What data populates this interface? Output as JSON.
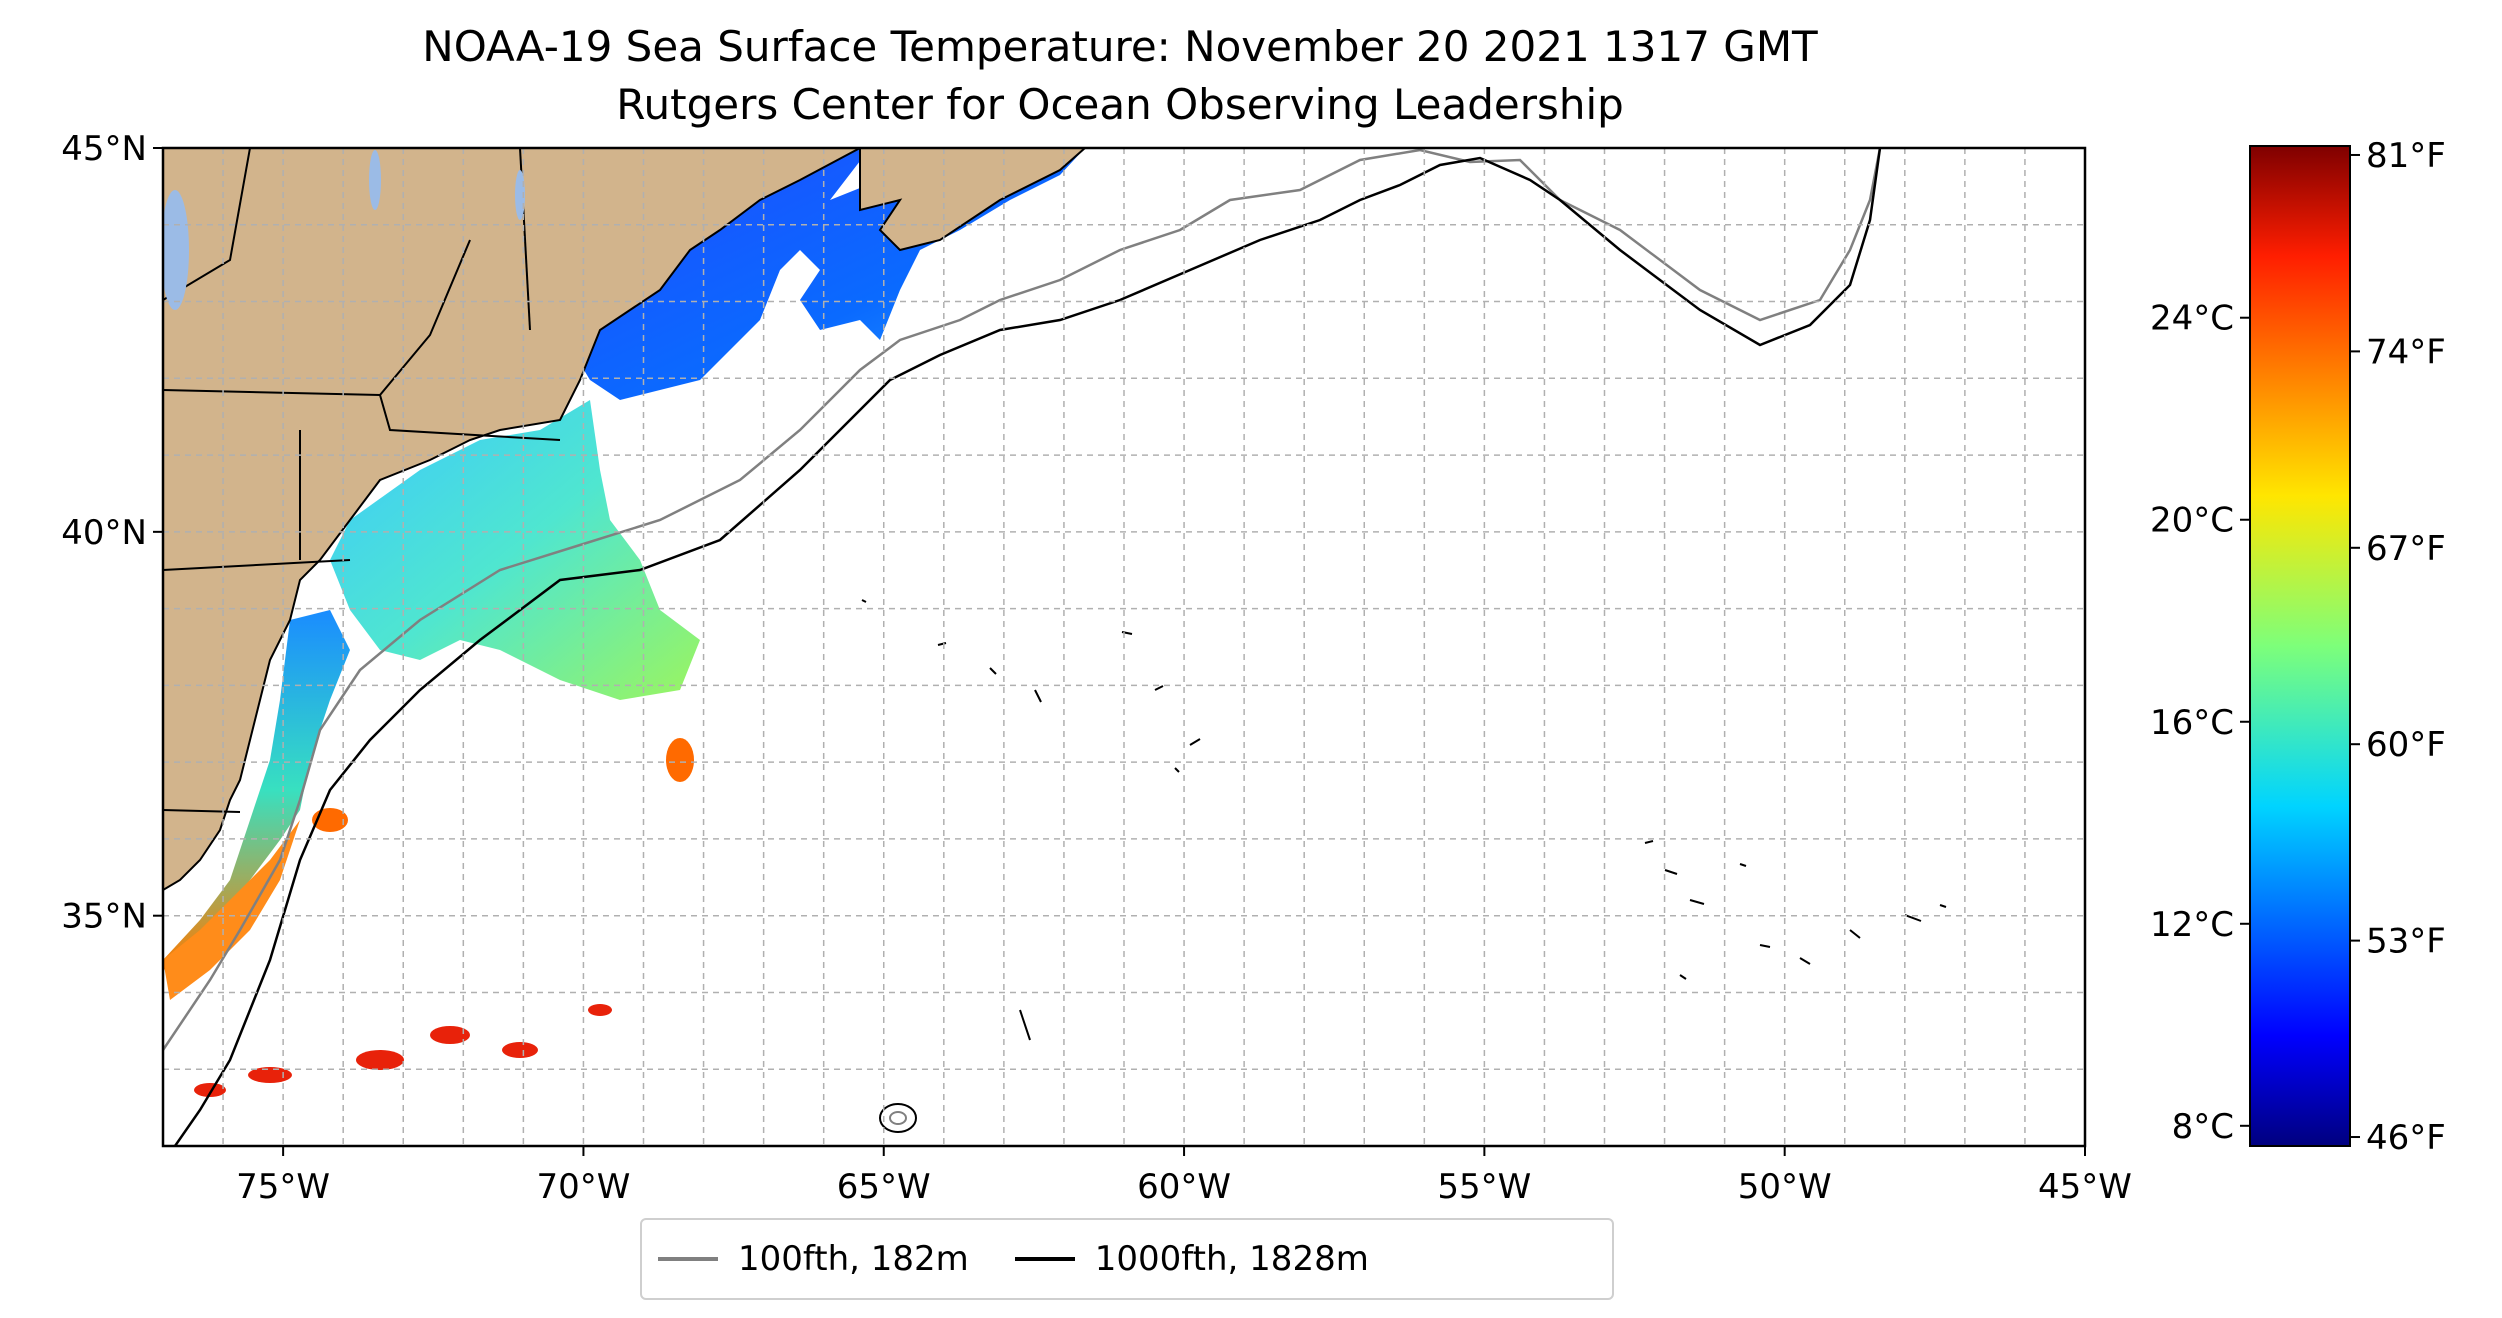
{
  "title": "NOAA-19 Sea Surface Temperature: November 20 2021 1317 GMT",
  "subtitle": "Rutgers Center for Ocean Observing Leadership",
  "map": {
    "lon_range": [
      -77,
      -45
    ],
    "lat_range": [
      32,
      45
    ],
    "lon_ticks": [
      "75°W",
      "70°W",
      "65°W",
      "60°W",
      "55°W",
      "50°W",
      "45°W"
    ],
    "lat_ticks": [
      "45°N",
      "40°N",
      "35°N"
    ],
    "grid": true,
    "land_color": "#d2b48c",
    "lake_color": "#9bbbe6"
  },
  "legend": {
    "items": [
      {
        "label": "100fth, 182m",
        "color": "#808080"
      },
      {
        "label": "1000fth, 1828m",
        "color": "#000000"
      }
    ]
  },
  "colorbar": {
    "colormap": "jet",
    "range_c": [
      7.6,
      27.4
    ],
    "celsius_ticks": [
      "24°C",
      "20°C",
      "16°C",
      "12°C",
      "8°C"
    ],
    "fahrenheit_ticks": [
      "81°F",
      "74°F",
      "67°F",
      "60°F",
      "53°F",
      "46°F"
    ]
  }
}
